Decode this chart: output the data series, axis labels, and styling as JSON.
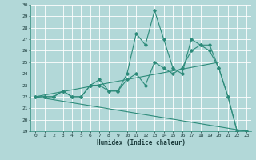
{
  "title": "",
  "xlabel": "Humidex (Indice chaleur)",
  "background_color": "#b2d8d8",
  "grid_color": "#ffffff",
  "line_color": "#2d8b7a",
  "xlim": [
    -0.5,
    23.5
  ],
  "ylim": [
    19,
    30
  ],
  "xticks": [
    0,
    1,
    2,
    3,
    4,
    5,
    6,
    7,
    8,
    9,
    10,
    11,
    12,
    13,
    14,
    15,
    16,
    17,
    18,
    19,
    20,
    21,
    22,
    23
  ],
  "yticks": [
    19,
    20,
    21,
    22,
    23,
    24,
    25,
    26,
    27,
    28,
    29,
    30
  ],
  "line1_x": [
    0,
    1,
    2,
    3,
    4,
    5,
    6,
    7,
    8,
    9,
    10,
    11,
    12,
    13,
    14,
    15,
    16,
    17,
    18,
    19,
    20,
    21,
    22,
    23
  ],
  "line1_y": [
    22,
    22,
    22,
    22.5,
    22,
    22,
    23,
    23.5,
    22.5,
    22.5,
    24,
    27.5,
    26.5,
    29.5,
    27,
    24.5,
    24,
    27,
    26.5,
    26.5,
    24.5,
    22,
    19,
    19
  ],
  "line2_x": [
    0,
    1,
    2,
    3,
    4,
    5,
    6,
    7,
    8,
    9,
    10,
    11,
    12,
    13,
    14,
    15,
    16,
    17,
    18,
    19,
    20,
    21,
    22,
    23
  ],
  "line2_y": [
    22,
    22,
    22,
    22.5,
    22,
    22,
    23,
    23,
    22.5,
    22.5,
    23.5,
    24.0,
    23,
    25,
    24.5,
    24,
    24.5,
    26,
    26.5,
    26,
    24.5,
    22,
    19,
    19
  ],
  "line3_x": [
    0,
    23
  ],
  "line3_y": [
    22,
    19
  ],
  "line4_x": [
    0,
    20
  ],
  "line4_y": [
    22,
    25
  ]
}
